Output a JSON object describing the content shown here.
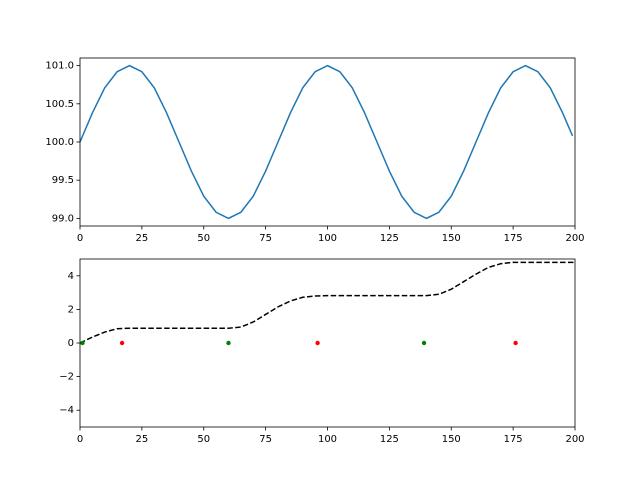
{
  "chart_data": [
    {
      "type": "line",
      "x": [
        0,
        5,
        10,
        15,
        20,
        25,
        30,
        35,
        40,
        45,
        50,
        55,
        60,
        65,
        70,
        75,
        80,
        85,
        90,
        95,
        100,
        105,
        110,
        115,
        120,
        125,
        130,
        135,
        140,
        145,
        150,
        155,
        160,
        165,
        170,
        175,
        180,
        185,
        190,
        195,
        199
      ],
      "series": [
        {
          "color": "#1f77b4",
          "values": [
            100,
            100.38,
            100.71,
            100.92,
            101,
            100.92,
            100.71,
            100.38,
            100,
            99.62,
            99.29,
            99.08,
            99,
            99.08,
            99.29,
            99.62,
            100,
            100.38,
            100.71,
            100.92,
            101,
            100.92,
            100.71,
            100.38,
            100,
            99.62,
            99.29,
            99.08,
            99,
            99.08,
            99.29,
            99.62,
            100,
            100.38,
            100.71,
            100.92,
            101,
            100.92,
            100.71,
            100.38,
            100.08
          ]
        }
      ],
      "xlim": [
        0,
        200
      ],
      "xticks": [
        0,
        25,
        50,
        75,
        100,
        125,
        150,
        175,
        200
      ],
      "ylim": [
        98.9,
        101.1
      ],
      "yticks": [
        {
          "value": 99,
          "label": "99.0"
        },
        {
          "value": 99.5,
          "label": "99.5"
        },
        {
          "value": 100,
          "label": "100.0"
        },
        {
          "value": 100.5,
          "label": "100.5"
        },
        {
          "value": 101,
          "label": "101.0"
        }
      ]
    },
    {
      "type": "line",
      "series": [
        {
          "type": "line",
          "dash": "dashed",
          "color": "#000000",
          "x": [
            0,
            5,
            10,
            15,
            20,
            25,
            30,
            35,
            40,
            45,
            50,
            55,
            60,
            65,
            70,
            75,
            80,
            85,
            90,
            95,
            100,
            105,
            110,
            115,
            120,
            125,
            130,
            135,
            140,
            145,
            150,
            155,
            160,
            165,
            170,
            175,
            180,
            185,
            190,
            195,
            200
          ],
          "values": [
            0,
            0.35,
            0.65,
            0.85,
            0.88,
            0.88,
            0.88,
            0.88,
            0.88,
            0.88,
            0.88,
            0.88,
            0.88,
            0.95,
            1.25,
            1.7,
            2.15,
            2.5,
            2.72,
            2.8,
            2.82,
            2.82,
            2.82,
            2.82,
            2.82,
            2.82,
            2.82,
            2.82,
            2.82,
            2.9,
            3.2,
            3.65,
            4.1,
            4.5,
            4.72,
            4.8,
            4.8,
            4.8,
            4.8,
            4.8,
            4.8
          ]
        },
        {
          "type": "scatter",
          "color": "#008000",
          "x": [
            1,
            60,
            139
          ],
          "values": [
            0,
            0,
            0
          ]
        },
        {
          "type": "scatter",
          "color": "#ff0000",
          "x": [
            17,
            96,
            176
          ],
          "values": [
            0,
            0,
            0
          ]
        }
      ],
      "xlim": [
        0,
        200
      ],
      "xticks": [
        0,
        25,
        50,
        75,
        100,
        125,
        150,
        175,
        200
      ],
      "ylim": [
        -5,
        5
      ],
      "yticks": [
        {
          "value": -4,
          "label": "−4"
        },
        {
          "value": -2,
          "label": "−2"
        },
        0,
        2,
        4
      ]
    }
  ]
}
